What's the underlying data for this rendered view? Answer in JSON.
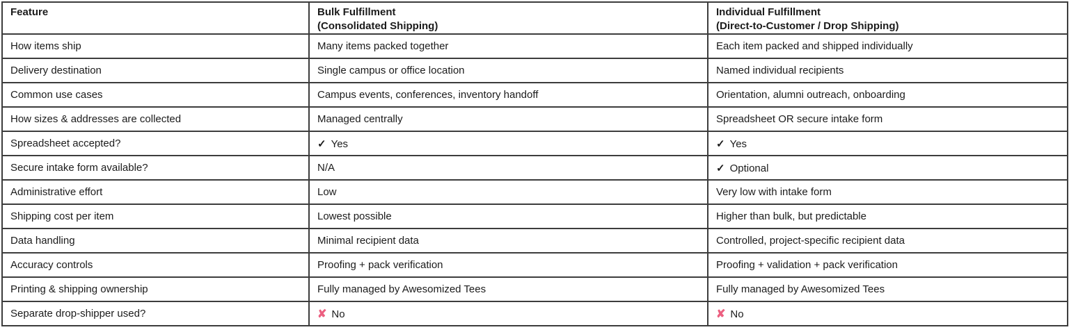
{
  "table": {
    "columns": [
      {
        "label": "Feature",
        "sublabel": ""
      },
      {
        "label": "Bulk Fulfillment",
        "sublabel": "(Consolidated Shipping)"
      },
      {
        "label": "Individual Fulfillment",
        "sublabel": "(Direct-to-Customer / Drop Shipping)"
      }
    ],
    "rows": [
      {
        "feature": "How items ship",
        "bulk": {
          "text": "Many items packed together"
        },
        "individual": {
          "text": "Each item packed and shipped individually"
        }
      },
      {
        "feature": "Delivery destination",
        "bulk": {
          "text": "Single campus or office location"
        },
        "individual": {
          "text": "Named individual recipients"
        }
      },
      {
        "feature": "Common use cases",
        "bulk": {
          "text": "Campus events, conferences, inventory handoff"
        },
        "individual": {
          "text": "Orientation, alumni outreach, onboarding"
        }
      },
      {
        "feature": "How sizes & addresses are collected",
        "bulk": {
          "text": "Managed centrally"
        },
        "individual": {
          "text": "Spreadsheet OR secure intake form"
        }
      },
      {
        "feature": "Spreadsheet accepted?",
        "bulk": {
          "icon": "check",
          "text": "Yes"
        },
        "individual": {
          "icon": "check",
          "text": "Yes"
        }
      },
      {
        "feature": "Secure intake form available?",
        "bulk": {
          "text": "N/A"
        },
        "individual": {
          "icon": "check",
          "text": "Optional"
        }
      },
      {
        "feature": "Administrative effort",
        "bulk": {
          "text": "Low"
        },
        "individual": {
          "text": "Very low with intake form"
        }
      },
      {
        "feature": "Shipping cost per item",
        "bulk": {
          "text": "Lowest possible"
        },
        "individual": {
          "text": "Higher than bulk, but predictable"
        }
      },
      {
        "feature": "Data handling",
        "bulk": {
          "text": "Minimal recipient data"
        },
        "individual": {
          "text": "Controlled, project-specific recipient data"
        }
      },
      {
        "feature": "Accuracy controls",
        "bulk": {
          "text": "Proofing + pack verification"
        },
        "individual": {
          "text": "Proofing + validation + pack verification"
        }
      },
      {
        "feature": "Printing & shipping ownership",
        "bulk": {
          "text": "Fully managed by Awesomized Tees"
        },
        "individual": {
          "text": "Fully managed by Awesomized Tees"
        }
      },
      {
        "feature": "Separate drop-shipper used?",
        "bulk": {
          "icon": "cross",
          "text": "No"
        },
        "individual": {
          "icon": "cross",
          "text": "No"
        }
      }
    ]
  },
  "icons": {
    "check": "✓",
    "cross": "✘"
  },
  "colors": {
    "check": "#1b1b1b",
    "cross": "#ec5f80",
    "border": "#3c3c3c",
    "text": "#1b1b1b"
  }
}
